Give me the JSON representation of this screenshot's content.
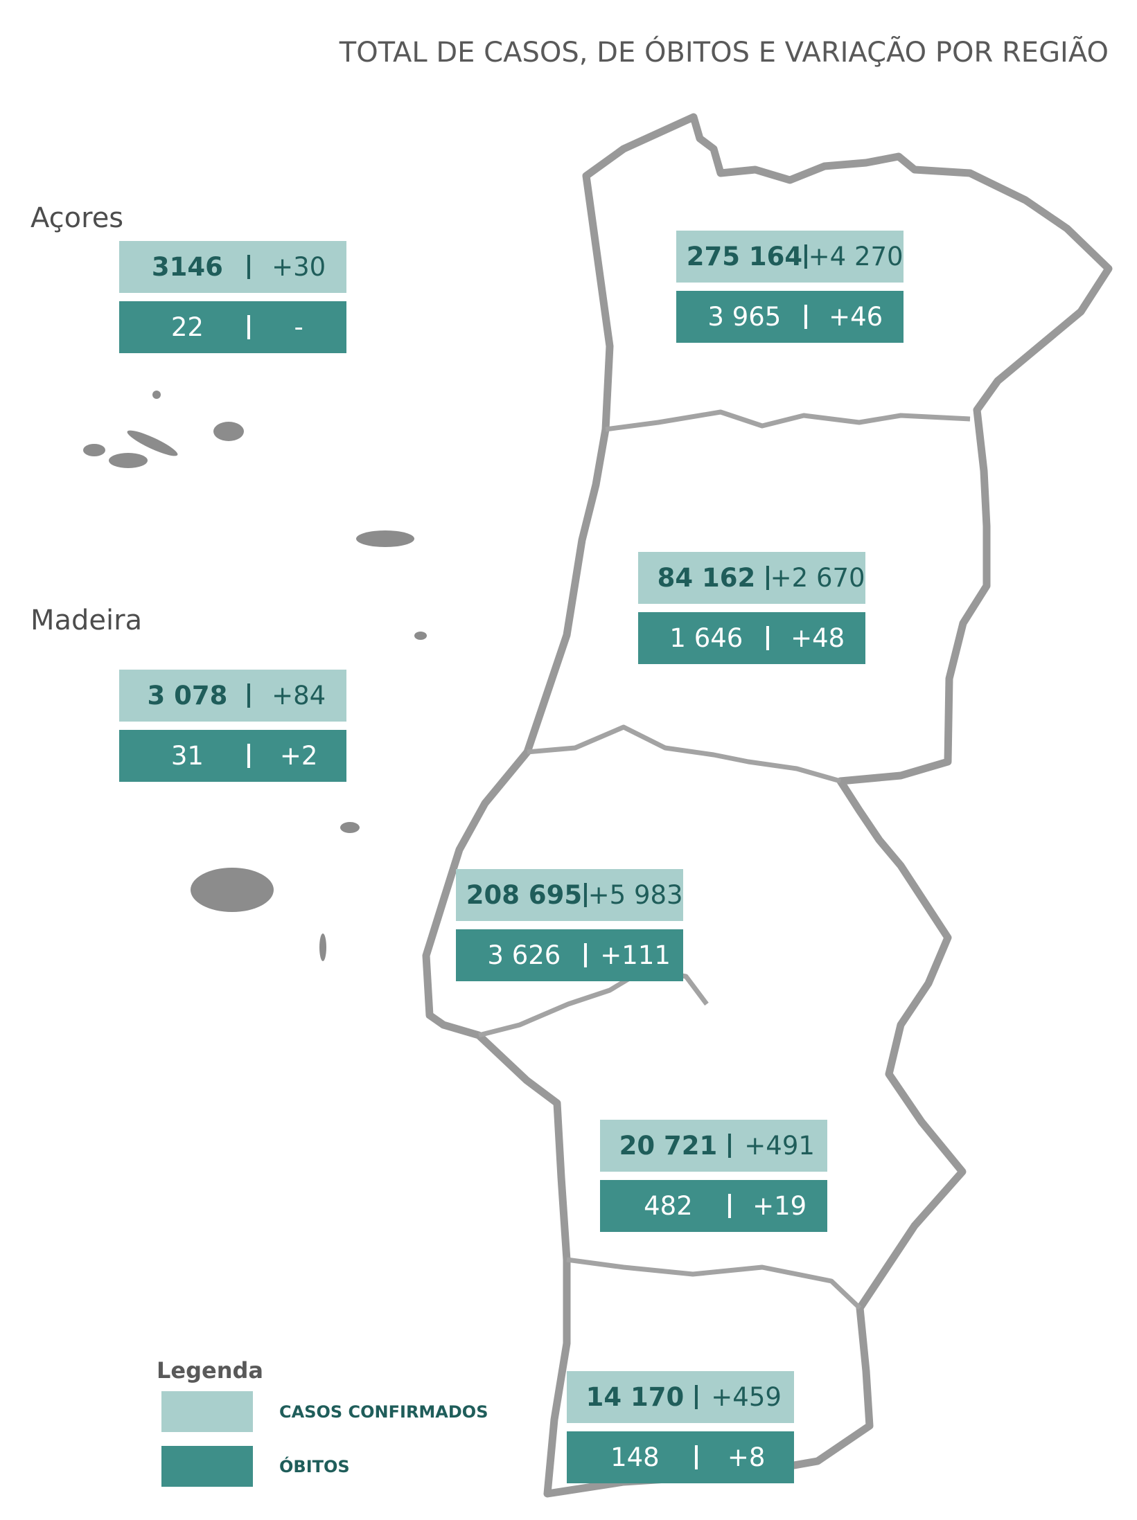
{
  "title": "TOTAL DE CASOS, DE ÓBITOS E VARIAÇÃO POR REGIÃO",
  "regions": [
    {
      "name": "Açores",
      "cases": "3146",
      "cases_var": "+30",
      "deaths": "22",
      "deaths_var": "-"
    },
    {
      "cases": "275 164",
      "cases_var": "+4 270",
      "deaths": "3 965",
      "deaths_var": "+46"
    },
    {
      "cases": "84 162",
      "cases_var": "+2 670",
      "deaths": "1 646",
      "deaths_var": "+48"
    },
    {
      "name": "Madeira",
      "cases": "3 078",
      "cases_var": "+84",
      "deaths": "31",
      "deaths_var": "+2"
    },
    {
      "cases": "208 695",
      "cases_var": "+5 983",
      "deaths": "3 626",
      "deaths_var": "+111"
    },
    {
      "cases": "20 721",
      "cases_var": "+491",
      "deaths": "482",
      "deaths_var": "+19"
    },
    {
      "cases": "14 170",
      "cases_var": "+459",
      "deaths": "148",
      "deaths_var": "+8"
    }
  ],
  "legend": {
    "title": "Legenda",
    "items": [
      {
        "label": "CASOS CONFIRMADOS",
        "color": "#a9cfcc"
      },
      {
        "label": "ÓBITOS",
        "color": "#3e8f89"
      }
    ]
  }
}
